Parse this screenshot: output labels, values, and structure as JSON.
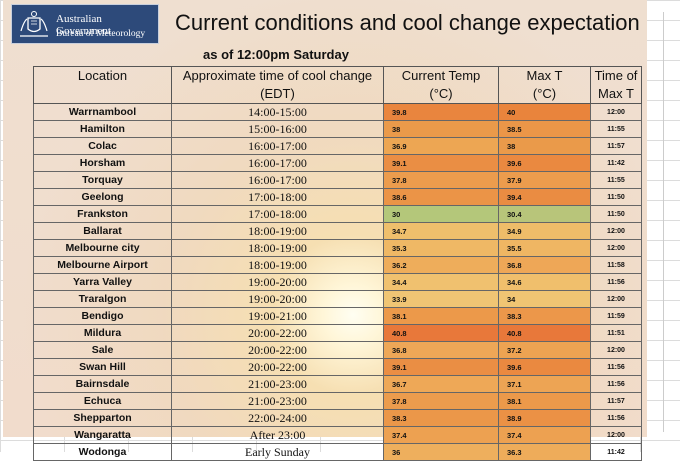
{
  "header": {
    "org_line1": "Australian Government",
    "org_line2": "Bureau of Meteorology",
    "title": "Current conditions and cool change expectation",
    "subtitle": "as of 12:00pm Saturday"
  },
  "columns": {
    "location": "Location",
    "change_1": "Approximate time of cool change",
    "change_2": "(EDT)",
    "cur_1": "Current Temp",
    "cur_2": "(°C)",
    "max_1": "Max T",
    "max_2": "(°C)",
    "time_1": "Time of",
    "time_2": "Max T"
  },
  "rows": [
    {
      "location": "Warrnambool",
      "change": "14:00-15:00",
      "current": "39.8",
      "max": "40",
      "time": "12:00",
      "cur_color": "#e9853e",
      "max_color": "#e9843c"
    },
    {
      "location": "Hamilton",
      "change": "15:00-16:00",
      "current": "38",
      "max": "38.5",
      "time": "11:55",
      "cur_color": "#ea9a4a",
      "max_color": "#eb9648"
    },
    {
      "location": "Colac",
      "change": "16:00-17:00",
      "current": "36.9",
      "max": "38",
      "time": "11:57",
      "cur_color": "#eda653",
      "max_color": "#ea9a4a"
    },
    {
      "location": "Horsham",
      "change": "16:00-17:00",
      "current": "39.1",
      "max": "39.6",
      "time": "11:42",
      "cur_color": "#ea8e44",
      "max_color": "#ea8940"
    },
    {
      "location": "Torquay",
      "change": "16:00-17:00",
      "current": "37.8",
      "max": "37.9",
      "time": "11:55",
      "cur_color": "#ec9c4d",
      "max_color": "#ec9c4d"
    },
    {
      "location": "Geelong",
      "change": "17:00-18:00",
      "current": "38.6",
      "max": "39.4",
      "time": "11:50",
      "cur_color": "#eb9447",
      "max_color": "#ea8c42"
    },
    {
      "location": "Frankston",
      "change": "17:00-18:00",
      "current": "30",
      "max": "30.4",
      "time": "11:50",
      "cur_color": "#b4c77a",
      "max_color": "#b8c57a"
    },
    {
      "location": "Ballarat",
      "change": "18:00-19:00",
      "current": "34.7",
      "max": "34.9",
      "time": "12:00",
      "cur_color": "#efbf6c",
      "max_color": "#efbd69"
    },
    {
      "location": "Melbourne city",
      "change": "18:00-19:00",
      "current": "35.3",
      "max": "35.5",
      "time": "12:00",
      "cur_color": "#efb865",
      "max_color": "#efb663"
    },
    {
      "location": "Melbourne Airport",
      "change": "18:00-19:00",
      "current": "36.2",
      "max": "36.8",
      "time": "11:58",
      "cur_color": "#eead5b",
      "max_color": "#eea757"
    },
    {
      "location": "Yarra Valley",
      "change": "19:00-20:00",
      "current": "34.4",
      "max": "34.6",
      "time": "11:56",
      "cur_color": "#f0c16f",
      "max_color": "#f0bf6c"
    },
    {
      "location": "Traralgon",
      "change": "19:00-20:00",
      "current": "33.9",
      "max": "34",
      "time": "12:00",
      "cur_color": "#f0c574",
      "max_color": "#f0c573"
    },
    {
      "location": "Bendigo",
      "change": "19:00-21:00",
      "current": "38.1",
      "max": "38.3",
      "time": "11:59",
      "cur_color": "#ec994a",
      "max_color": "#ec974a"
    },
    {
      "location": "Mildura",
      "change": "20:00-22:00",
      "current": "40.8",
      "max": "40.8",
      "time": "11:51",
      "cur_color": "#e8783a",
      "max_color": "#e8783a"
    },
    {
      "location": "Sale",
      "change": "20:00-22:00",
      "current": "36.8",
      "max": "37.2",
      "time": "12:00",
      "cur_color": "#eea757",
      "max_color": "#eda352"
    },
    {
      "location": "Swan Hill",
      "change": "20:00-22:00",
      "current": "39.1",
      "max": "39.6",
      "time": "11:56",
      "cur_color": "#ea8e44",
      "max_color": "#ea8940"
    },
    {
      "location": "Bairnsdale",
      "change": "21:00-23:00",
      "current": "36.7",
      "max": "37.1",
      "time": "11:56",
      "cur_color": "#eea857",
      "max_color": "#eda454"
    },
    {
      "location": "Echuca",
      "change": "21:00-23:00",
      "current": "37.8",
      "max": "38.1",
      "time": "11:57",
      "cur_color": "#ec9c4d",
      "max_color": "#ec994a"
    },
    {
      "location": "Shepparton",
      "change": "22:00-24:00",
      "current": "38.3",
      "max": "38.9",
      "time": "11:56",
      "cur_color": "#eb9749",
      "max_color": "#eb9145"
    },
    {
      "location": "Wangaratta",
      "change": "After 23:00",
      "current": "37.4",
      "max": "37.4",
      "time": "12:00",
      "cur_color": "#eda151",
      "max_color": "#eda151"
    },
    {
      "location": "Wodonga",
      "change": "Early Sunday",
      "current": "36",
      "max": "36.3",
      "time": "11:42",
      "cur_color": "#eeaf5d",
      "max_color": "#eeac5a"
    }
  ]
}
